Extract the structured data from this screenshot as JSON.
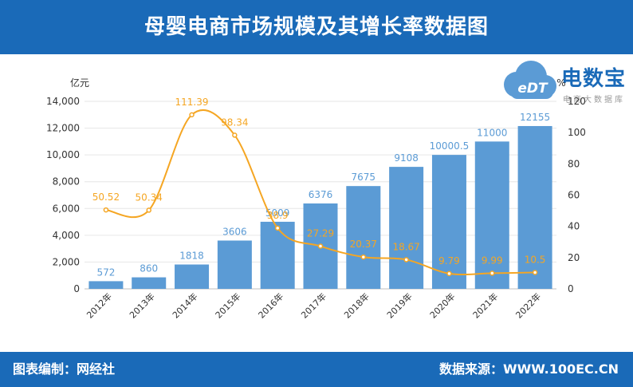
{
  "header": {
    "title": "母婴电商市场规模及其增长率数据图"
  },
  "footer": {
    "compiler": "图表编制：网经社",
    "source": "数据来源：WWW.100EC.CN"
  },
  "logo": {
    "brand": "电数宝",
    "badge": "eDT",
    "subtitle": "电商大数据库"
  },
  "colors": {
    "header_bg": "#1a6ab8",
    "bar": "#5b9bd5",
    "line": "#f5a623",
    "bar_label": "#5b9bd5",
    "line_label": "#f5a623"
  },
  "chart_data": {
    "type": "bar",
    "categories": [
      "2012年",
      "2013年",
      "2014年",
      "2015年",
      "2016年",
      "2017年",
      "2018年",
      "2019年",
      "2020年",
      "2021年",
      "2022年"
    ],
    "series": [
      {
        "type": "bar",
        "axis": "left",
        "values": [
          572,
          860,
          1818,
          3606,
          5009,
          6376,
          7675,
          9108,
          10000.5,
          11000,
          12155
        ],
        "labels": [
          "572",
          "860",
          "1818",
          "3606",
          "5009",
          "6376",
          "7675",
          "9108",
          "10000.5",
          "11000",
          "12155"
        ]
      },
      {
        "type": "line",
        "axis": "right",
        "values": [
          50.52,
          50.34,
          111.39,
          98.34,
          38.9,
          27.29,
          20.37,
          18.67,
          9.79,
          9.99,
          10.5
        ],
        "labels": [
          "50.52",
          "50.34",
          "111.39",
          "98.34",
          "38.9",
          "27.29",
          "20.37",
          "18.67",
          "9.79",
          "9.99",
          "10.5"
        ]
      }
    ],
    "y_left": {
      "label": "亿元",
      "ylim": [
        0,
        14000
      ],
      "ticks": [
        0,
        2000,
        4000,
        6000,
        8000,
        10000,
        12000,
        14000
      ],
      "tick_labels": [
        "0",
        "2,000",
        "4,000",
        "6,000",
        "8,000",
        "10,000",
        "12,000",
        "14,000"
      ]
    },
    "y_right": {
      "label": "%",
      "ylim": [
        0,
        120
      ],
      "ticks": [
        0,
        20,
        40,
        60,
        80,
        100,
        120
      ],
      "tick_labels": [
        "0",
        "20",
        "40",
        "60",
        "80",
        "100",
        "120"
      ]
    },
    "grid": true,
    "legend": "none"
  }
}
